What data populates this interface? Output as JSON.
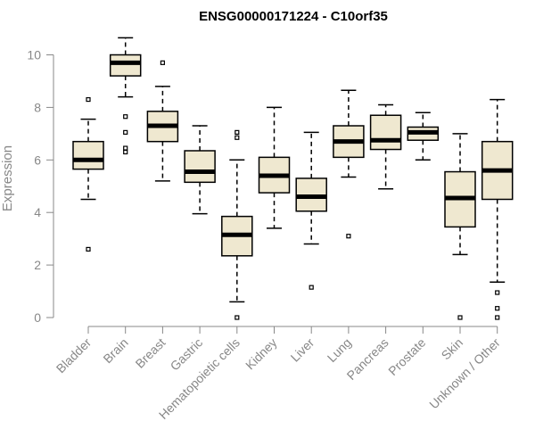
{
  "chart_data": {
    "type": "box",
    "title": "ENSG00000171224 - C10orf35",
    "ylabel": "Expression",
    "xlabel": "",
    "ylim": [
      0,
      10.7
    ],
    "yticks": [
      0,
      2,
      4,
      6,
      8,
      10
    ],
    "grid": false,
    "box_fill": "#efe8d0",
    "box_stroke": "#000000",
    "categories": [
      "Bladder",
      "Brain",
      "Breast",
      "Gastric",
      "Hematopoietic cells",
      "Kidney",
      "Liver",
      "Lung",
      "Pancreas",
      "Prostate",
      "Skin",
      "Unknown / Other"
    ],
    "boxes": [
      {
        "min": 4.5,
        "q1": 5.65,
        "median": 6.0,
        "q3": 6.7,
        "max": 7.55,
        "outliers": [
          8.3,
          2.6
        ]
      },
      {
        "min": 8.4,
        "q1": 9.2,
        "median": 9.7,
        "q3": 10.0,
        "max": 10.65,
        "outliers": [
          7.65,
          7.05,
          6.45,
          6.3
        ]
      },
      {
        "min": 5.2,
        "q1": 6.7,
        "median": 7.3,
        "q3": 7.85,
        "max": 8.8,
        "outliers": [
          9.7
        ]
      },
      {
        "min": 3.95,
        "q1": 5.15,
        "median": 5.55,
        "q3": 6.35,
        "max": 7.3,
        "outliers": []
      },
      {
        "min": 0.6,
        "q1": 2.35,
        "median": 3.15,
        "q3": 3.85,
        "max": 6.0,
        "outliers": [
          7.05,
          6.85,
          0.0
        ]
      },
      {
        "min": 3.4,
        "q1": 4.75,
        "median": 5.4,
        "q3": 6.1,
        "max": 8.0,
        "outliers": []
      },
      {
        "min": 2.8,
        "q1": 4.05,
        "median": 4.6,
        "q3": 5.3,
        "max": 7.05,
        "outliers": [
          1.15
        ]
      },
      {
        "min": 5.35,
        "q1": 6.1,
        "median": 6.7,
        "q3": 7.3,
        "max": 8.65,
        "outliers": [
          3.1
        ]
      },
      {
        "min": 4.9,
        "q1": 6.4,
        "median": 6.75,
        "q3": 7.7,
        "max": 8.1,
        "outliers": []
      },
      {
        "min": 6.0,
        "q1": 6.75,
        "median": 7.05,
        "q3": 7.25,
        "max": 7.8,
        "outliers": []
      },
      {
        "min": 2.4,
        "q1": 3.45,
        "median": 4.55,
        "q3": 5.55,
        "max": 7.0,
        "outliers": [
          0.0
        ]
      },
      {
        "min": 1.35,
        "q1": 4.5,
        "median": 5.6,
        "q3": 6.7,
        "max": 8.3,
        "outliers": [
          0.95,
          0.35,
          0.0
        ]
      }
    ]
  }
}
